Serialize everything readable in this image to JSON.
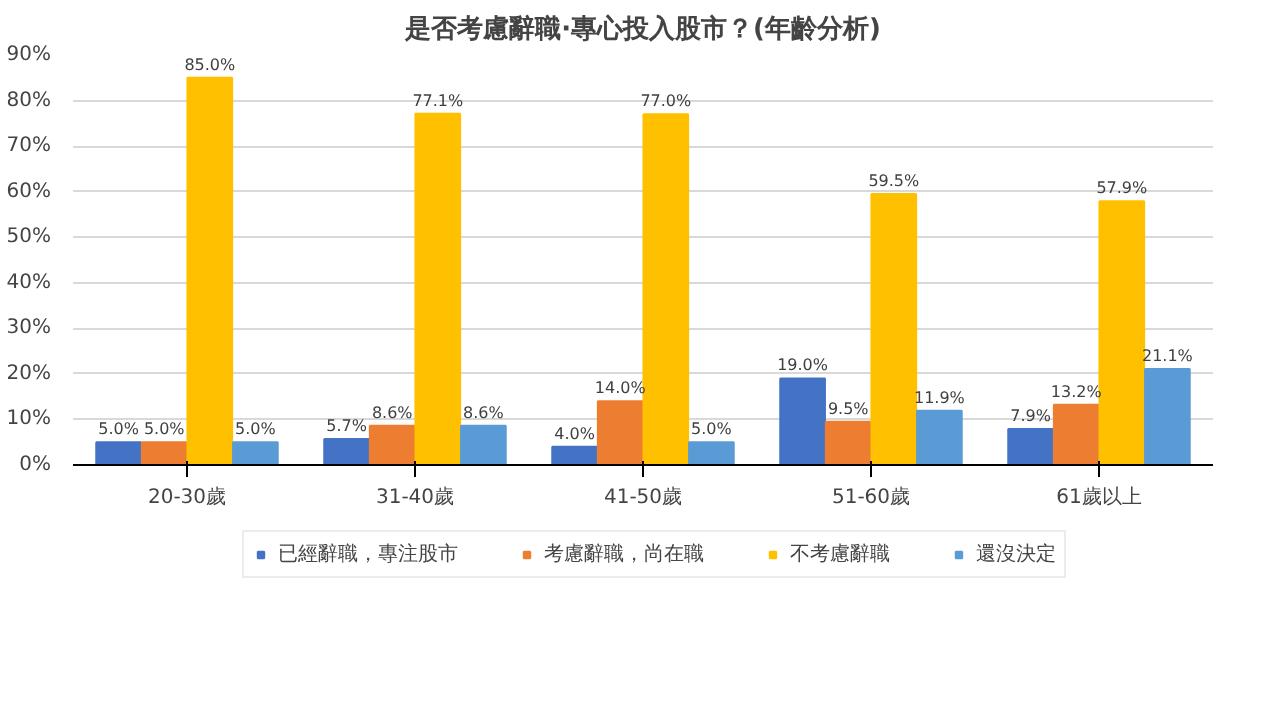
{
  "chart_data": {
    "type": "bar",
    "title": "是否考慮辭職·專心投入股市？(年齡分析)",
    "categories": [
      "20-30歲",
      "31-40歲",
      "41-50歲",
      "51-60歲",
      "61歲以上"
    ],
    "series": [
      {
        "name": "已經辭職，專注股市",
        "color": "#4472c4",
        "values": [
          5.0,
          5.7,
          4.0,
          19.0,
          7.9
        ],
        "value_labels": [
          "5.0%",
          "5.7%",
          "4.0%",
          "19.0%",
          "7.9%"
        ]
      },
      {
        "name": "考慮辭職，尚在職",
        "color": "#ed7d31",
        "values": [
          5.0,
          8.6,
          14.0,
          9.5,
          13.2
        ],
        "value_labels": [
          "5.0%",
          "8.6%",
          "14.0%",
          "9.5%",
          "13.2%"
        ]
      },
      {
        "name": "不考慮辭職",
        "color": "#ffc000",
        "values": [
          85.0,
          77.1,
          77.0,
          59.5,
          57.9
        ],
        "value_labels": [
          "85.0%",
          "77.1%",
          "77.0%",
          "59.5%",
          "57.9%"
        ]
      },
      {
        "name": "還沒決定",
        "color": "#5b9bd5",
        "values": [
          5.0,
          8.6,
          5.0,
          11.9,
          21.1
        ],
        "value_labels": [
          "5.0%",
          "8.6%",
          "5.0%",
          "11.9%",
          "21.1%"
        ]
      }
    ],
    "ylim": [
      0,
      90
    ],
    "yticks": [
      {
        "value": 0,
        "label": "0%"
      },
      {
        "value": 10,
        "label": "10%"
      },
      {
        "value": 20,
        "label": "20%"
      },
      {
        "value": 30,
        "label": "30%"
      },
      {
        "value": 40,
        "label": "40%"
      },
      {
        "value": 50,
        "label": "50%"
      },
      {
        "value": 60,
        "label": "60%"
      },
      {
        "value": 70,
        "label": "70%"
      },
      {
        "value": 80,
        "label": "80%"
      },
      {
        "value": 90,
        "label": "90%"
      }
    ],
    "grid": "y",
    "legend": "bottom"
  }
}
